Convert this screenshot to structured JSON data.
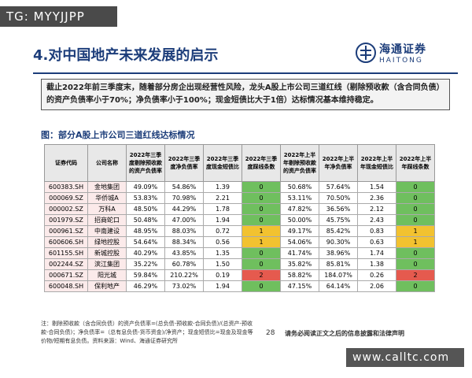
{
  "watermark_top": "TG: MYYJJPP",
  "watermark_bottom": "www.calltc.com",
  "header": {
    "title": "4.对中国地产未来发展的启示",
    "logo_cn": "海通证券",
    "logo_en": "HAITONG"
  },
  "summary": "截止2022年前三季度末，随着部分房企出现经营性风险，龙头A股上市公司三道红线（剔除预收款（含合同负债）的资产负债率小于70%；净负债率小于100%；现金短债比大于1倍）达标情况基本维持稳定。",
  "table": {
    "caption": "图：部分A股上市公司三道红线达标情况",
    "columns": [
      "证券代码",
      "公司名称",
      "2022年三季度剔除预收款的资产负债率",
      "2022年三季度净负债率",
      "2022年三季度现金短债比",
      "2022年三季度踩线条数",
      "2022年上半年剔除预收款的资产负债率",
      "2022年上半年净负债率",
      "2022年上半年现金短债比",
      "2022年上半年踩线条数"
    ],
    "rows": [
      [
        "600383.SH",
        "金地集团",
        "49.09%",
        "54.86%",
        "1.39",
        "0",
        "50.68%",
        "57.64%",
        "1.54",
        "0"
      ],
      [
        "000069.SZ",
        "华侨城A",
        "53.83%",
        "70.98%",
        "2.21",
        "0",
        "53.11%",
        "70.50%",
        "2.36",
        "0"
      ],
      [
        "000002.SZ",
        "万科A",
        "48.50%",
        "44.29%",
        "1.78",
        "0",
        "47.82%",
        "36.56%",
        "2.12",
        "0"
      ],
      [
        "001979.SZ",
        "招商蛇口",
        "50.48%",
        "47.00%",
        "1.94",
        "0",
        "50.00%",
        "45.75%",
        "2.43",
        "0"
      ],
      [
        "000961.SZ",
        "中南建设",
        "48.95%",
        "88.03%",
        "0.72",
        "1",
        "49.17%",
        "85.42%",
        "0.83",
        "1"
      ],
      [
        "600606.SH",
        "绿地控股",
        "54.64%",
        "88.34%",
        "0.56",
        "1",
        "54.06%",
        "90.30%",
        "0.63",
        "1"
      ],
      [
        "601155.SH",
        "新城控股",
        "40.29%",
        "43.85%",
        "1.35",
        "0",
        "41.74%",
        "38.96%",
        "1.74",
        "0"
      ],
      [
        "002244.SZ",
        "滨江集团",
        "35.22%",
        "60.78%",
        "1.50",
        "0",
        "35.82%",
        "85.81%",
        "1.38",
        "0"
      ],
      [
        "000671.SZ",
        "阳光城",
        "59.84%",
        "210.22%",
        "0.19",
        "2",
        "58.82%",
        "184.07%",
        "0.26",
        "2"
      ],
      [
        "600048.SH",
        "保利地产",
        "46.29%",
        "73.02%",
        "1.94",
        "0",
        "47.15%",
        "64.14%",
        "2.06",
        "0"
      ]
    ]
  },
  "footer": {
    "note": "注：剔除预收款（含合同负债）的资产负债率=(总负债-预收款-合同负债)/(总资产-预收款-合同负债)；净负债率=（总有息负债-货币资金)/净资产；现金短债比=现金及现金等价物/短期有息负债。资料来源：Wind、海通证券研究所",
    "page": "28",
    "disclaimer": "请务必阅读正文之后的信息披露和法律声明"
  }
}
